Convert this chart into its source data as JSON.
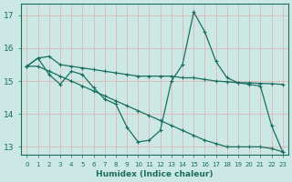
{
  "xlabel": "Humidex (Indice chaleur)",
  "xlim": [
    -0.5,
    23.5
  ],
  "ylim": [
    12.75,
    17.35
  ],
  "yticks": [
    13,
    14,
    15,
    16,
    17
  ],
  "xticks": [
    0,
    1,
    2,
    3,
    4,
    5,
    6,
    7,
    8,
    9,
    10,
    11,
    12,
    13,
    14,
    15,
    16,
    17,
    18,
    19,
    20,
    21,
    22,
    23
  ],
  "bg_color": "#cce8e4",
  "grid_color": "#ddbcbc",
  "line_color": "#1a6e60",
  "series1_x": [
    0,
    1,
    2,
    3,
    4,
    5,
    6,
    7,
    8,
    9,
    10,
    11,
    12,
    13,
    14,
    15,
    16,
    17,
    18,
    19,
    20,
    21,
    22,
    23
  ],
  "series1_y": [
    15.45,
    15.7,
    15.75,
    15.5,
    15.45,
    15.4,
    15.35,
    15.3,
    15.25,
    15.2,
    15.15,
    15.15,
    15.15,
    15.15,
    15.1,
    15.1,
    15.05,
    15.0,
    14.98,
    14.95,
    14.95,
    14.93,
    14.92,
    14.9
  ],
  "series2_x": [
    0,
    1,
    2,
    3,
    4,
    5,
    6,
    7,
    8,
    9,
    10,
    11,
    12,
    13,
    14,
    15,
    16,
    17,
    18,
    19,
    20,
    21,
    22,
    23
  ],
  "series2_y": [
    15.45,
    15.7,
    15.2,
    14.9,
    15.3,
    15.2,
    14.8,
    14.45,
    14.3,
    13.6,
    13.15,
    13.2,
    13.5,
    15.0,
    15.5,
    17.1,
    16.5,
    15.6,
    15.1,
    14.95,
    14.9,
    14.85,
    13.65,
    12.85
  ],
  "series3_x": [
    0,
    1,
    2,
    3,
    4,
    5,
    6,
    7,
    8,
    9,
    10,
    11,
    12,
    13,
    14,
    15,
    16,
    17,
    18,
    19,
    20,
    21,
    22,
    23
  ],
  "series3_y": [
    15.45,
    15.45,
    15.3,
    15.15,
    15.0,
    14.85,
    14.7,
    14.55,
    14.4,
    14.25,
    14.1,
    13.95,
    13.8,
    13.65,
    13.5,
    13.35,
    13.2,
    13.1,
    13.0,
    13.0,
    13.0,
    13.0,
    12.95,
    12.85
  ]
}
